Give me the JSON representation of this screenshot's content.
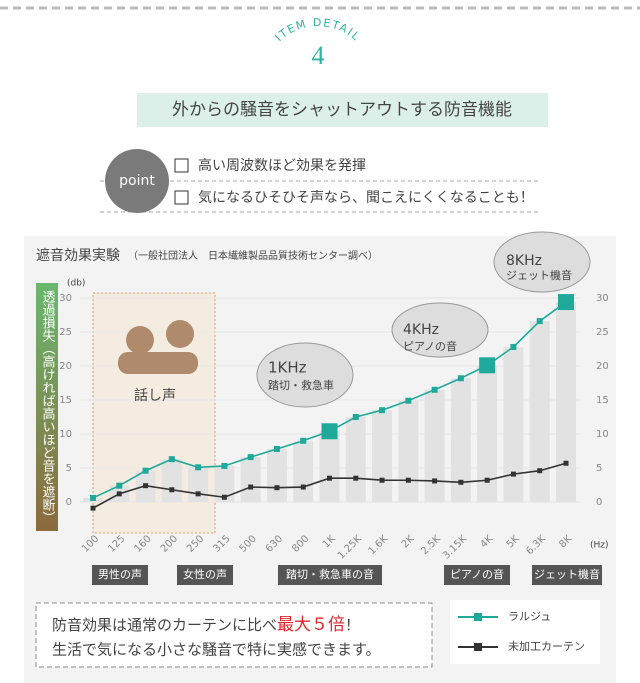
{
  "header": {
    "eyebrow": "ITEM DETAIL",
    "number": "4",
    "title": "外からの騒音をシャットアウトする防音機能"
  },
  "points": {
    "badge": "point",
    "items": [
      "高い周波数ほど効果を発揮",
      "気になるひそひそ声なら、聞こえにくくなることも！"
    ]
  },
  "chart_data": {
    "type": "line",
    "title": "遮音効果実験",
    "subtitle": "（一般社団法人　日本繊維製品品質技術センター調べ）",
    "y_label": "透過損失（高ければ高いほど音を遮断）",
    "y_unit": "(db)",
    "x_unit": "(Hz)",
    "categories": [
      "100",
      "125",
      "160",
      "200",
      "250",
      "315",
      "500",
      "630",
      "800",
      "1K",
      "1.25K",
      "1.6K",
      "2K",
      "2.5K",
      "3.15K",
      "4K",
      "5K",
      "6.3K",
      "8K"
    ],
    "series": [
      {
        "name": "ラルジュ",
        "color": "#1fa99a",
        "values": [
          0.6,
          2.4,
          4.6,
          6.3,
          5.1,
          5.3,
          6.6,
          7.8,
          9.0,
          10.4,
          12.5,
          13.5,
          14.9,
          16.5,
          18.2,
          20.1,
          22.8,
          26.6,
          29.4
        ]
      },
      {
        "name": "未加工カーテン",
        "color": "#333333",
        "values": [
          -0.9,
          1.2,
          2.4,
          1.8,
          1.2,
          0.7,
          2.2,
          2.1,
          2.2,
          3.5,
          3.5,
          3.2,
          3.2,
          3.1,
          2.9,
          3.2,
          4.1,
          4.6,
          5.7
        ]
      }
    ],
    "ylim": [
      -2,
      31
    ],
    "yticks": [
      0,
      5,
      10,
      15,
      20,
      25,
      30
    ],
    "y2lim": [
      -2,
      31
    ],
    "y2ticks": [
      0,
      5,
      10,
      15,
      20,
      25,
      30
    ],
    "bar_color": "#e2e2e2",
    "annotations": [
      {
        "text": "話し声"
      },
      {
        "title": "1KHz",
        "text": "踏切・救急車"
      },
      {
        "title": "4KHz",
        "text": "ピアノの音"
      },
      {
        "title": "8KHz",
        "text": "ジェット機音"
      }
    ],
    "region_labels": [
      "男性の声",
      "女性の声",
      "踏切・救急車の音",
      "ピアノの音",
      "ジェット機音"
    ]
  },
  "note": {
    "line1_before": "防音効果は通常のカーテンに比べ",
    "line1_emph": "最大５倍",
    "line1_after": "！",
    "line2": "生活で気になる小さな騒音で特に実感できます。"
  }
}
